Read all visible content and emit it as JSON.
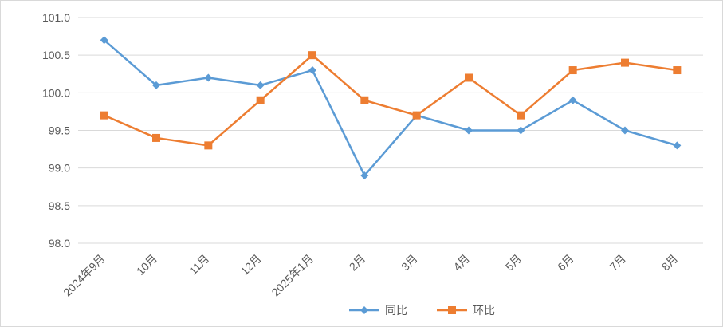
{
  "chart_data": {
    "type": "line",
    "title": "",
    "xlabel": "",
    "ylabel": "",
    "ylim": [
      98.0,
      101.0
    ],
    "y_ticks": [
      "98.0",
      "98.5",
      "99.0",
      "99.5",
      "100.0",
      "100.5",
      "101.0"
    ],
    "y_tick_values": [
      98.0,
      98.5,
      99.0,
      99.5,
      100.0,
      100.5,
      101.0
    ],
    "categories": [
      "2024年9月",
      "10月",
      "11月",
      "12月",
      "2025年1月",
      "2月",
      "3月",
      "4月",
      "5月",
      "6月",
      "7月",
      "8月"
    ],
    "grid": true,
    "legend_position": "bottom",
    "series": [
      {
        "name": "同比",
        "color": "#5b9bd5",
        "marker": "diamond",
        "values": [
          100.7,
          100.1,
          100.2,
          100.1,
          100.3,
          98.9,
          99.7,
          99.5,
          99.5,
          99.9,
          99.5,
          99.3
        ]
      },
      {
        "name": "环比",
        "color": "#ed7d31",
        "marker": "square",
        "values": [
          99.7,
          99.4,
          99.3,
          99.9,
          100.5,
          99.9,
          99.7,
          100.2,
          99.7,
          100.3,
          100.4,
          100.3
        ]
      }
    ]
  }
}
